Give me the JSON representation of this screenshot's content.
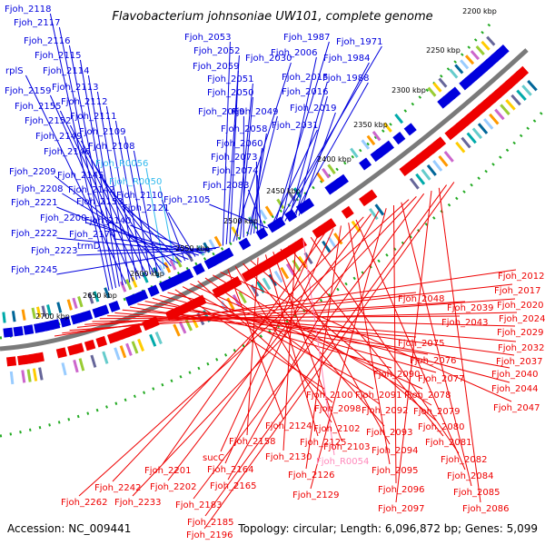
{
  "title": "Flavobacterium johnsoniae UW101, complete genome",
  "footer": {
    "accession": "Accession: NC_009441",
    "summary": "Topology: circular; Length: 6,096,872 bp; Genes: 5,099"
  },
  "colors": {
    "forward": "#0000dd",
    "reverse": "#ee0000",
    "rna": "#33bbee",
    "rna_reverse": "#ff88bb",
    "backbone": "#808080",
    "tick": "#22aa22"
  },
  "kbp_ticks": [
    "2200 kbp",
    "2250 kbp",
    "2300 kbp",
    "2350 kbp",
    "2400 kbp",
    "2450 kbp",
    "2500 kbp",
    "2550 kbp",
    "2600 kbp",
    "2650 kbp",
    "2700 kbp"
  ],
  "forward_labels": [
    "Fjoh_2118",
    "Fjoh_2117",
    "Fjoh_2116",
    "Fjoh_2115",
    "Fjoh_2114",
    "rplS",
    "Fjoh_2113",
    "Fjoh_2159",
    "Fjoh_2112",
    "Fjoh_2155",
    "Fjoh_2111",
    "Fjoh_2152",
    "Fjoh_2109",
    "Fjoh_2149",
    "Fjoh_2108",
    "Fjoh_2146",
    "Fjoh_R0056",
    "Fjoh_2209",
    "Fjoh_2145",
    "Fjoh_R0050",
    "Fjoh_2208",
    "Fjoh_2142",
    "Fjoh_2110",
    "Fjoh_2221",
    "Fjoh_2153",
    "Fjoh_2121",
    "Fjoh_2200",
    "Fjoh_2140",
    "Fjoh_2222",
    "Fjoh_2174",
    "Fjoh_2223",
    "trmD",
    "Fjoh_2245",
    "Fjoh_2053",
    "Fjoh_2052",
    "Fjoh_2059",
    "Fjoh_2030",
    "Fjoh_2051",
    "Fjoh_2050",
    "Fjoh_2069",
    "Fjoh_2049",
    "Fjoh_2058",
    "Fjoh_2060",
    "Fjoh_2073",
    "Fjoh_2074",
    "Fjoh_2083",
    "Fjoh_2105",
    "Fjoh_2031",
    "Fjoh_1987",
    "Fjoh_1971",
    "Fjoh_2006",
    "Fjoh_1984",
    "Fjoh_2015",
    "Fjoh_1988",
    "Fjoh_2016",
    "Fjoh_2019"
  ],
  "reverse_labels": [
    "Fjoh_2012",
    "Fjoh_2017",
    "Fjoh_2020",
    "Fjoh_2048",
    "Fjoh_2039",
    "Fjoh_2024",
    "Fjoh_2043",
    "Fjoh_2029",
    "Fjoh_2075",
    "Fjoh_2032",
    "Fjoh_2076",
    "Fjoh_2037",
    "Fjoh_2040",
    "Fjoh_2090",
    "Fjoh_2077",
    "Fjoh_2044",
    "Fjoh_2100",
    "Fjoh_2091",
    "Fjoh_2078",
    "Fjoh_2098",
    "Fjoh_2092",
    "Fjoh_2079",
    "Fjoh_2047",
    "Fjoh_2124",
    "Fjoh_2102",
    "Fjoh_2093",
    "Fjoh_2080",
    "Fjoh_2158",
    "Fjoh_2125",
    "Fjoh_2103",
    "Fjoh_2094",
    "Fjoh_2081",
    "Fjoh_2130",
    "Fjoh_R0054",
    "Fjoh_2082",
    "sucC",
    "Fjoh_2201",
    "Fjoh_2164",
    "Fjoh_2126",
    "Fjoh_2095",
    "Fjoh_2084",
    "Fjoh_2242",
    "Fjoh_2202",
    "Fjoh_2165",
    "Fjoh_2129",
    "Fjoh_2096",
    "Fjoh_2085",
    "Fjoh_2262",
    "Fjoh_2233",
    "Fjoh_2183",
    "Fjoh_2097",
    "Fjoh_2086",
    "Fjoh_2185",
    "Fjoh_2196"
  ]
}
